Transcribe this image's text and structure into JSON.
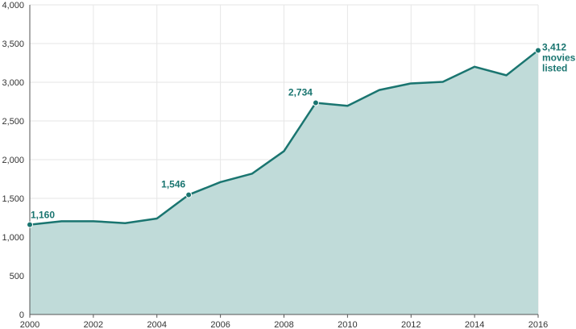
{
  "chart_data": {
    "type": "area",
    "title": "",
    "xlabel": "",
    "ylabel": "",
    "x": [
      2000,
      2001,
      2002,
      2003,
      2004,
      2005,
      2006,
      2007,
      2008,
      2009,
      2010,
      2011,
      2012,
      2013,
      2014,
      2015,
      2016
    ],
    "values": [
      1160,
      1205,
      1205,
      1180,
      1240,
      1546,
      1710,
      1820,
      2110,
      2734,
      2695,
      2900,
      2985,
      3005,
      3200,
      3090,
      3412
    ],
    "xlim": [
      2000,
      2016
    ],
    "ylim": [
      0,
      4000
    ],
    "x_ticks": [
      "2000",
      "2002",
      "2004",
      "2006",
      "2008",
      "2010",
      "2012",
      "2014",
      "2016"
    ],
    "y_ticks": [
      "0",
      "500",
      "1,000",
      "1,500",
      "2,000",
      "2,500",
      "3,000",
      "3,500",
      "4,000"
    ],
    "grid": true,
    "colors": {
      "line": "#1a7570",
      "fill": "#c0dbd9",
      "grid": "#e6e6e6",
      "axis": "#555555"
    },
    "annotations": [
      {
        "x": 2000,
        "y": 1160,
        "lines": [
          "1,160"
        ]
      },
      {
        "x": 2005,
        "y": 1546,
        "lines": [
          "1,546"
        ]
      },
      {
        "x": 2009,
        "y": 2734,
        "lines": [
          "2,734"
        ]
      },
      {
        "x": 2016,
        "y": 3412,
        "lines": [
          "3,412",
          "movies",
          "listed"
        ]
      }
    ]
  }
}
